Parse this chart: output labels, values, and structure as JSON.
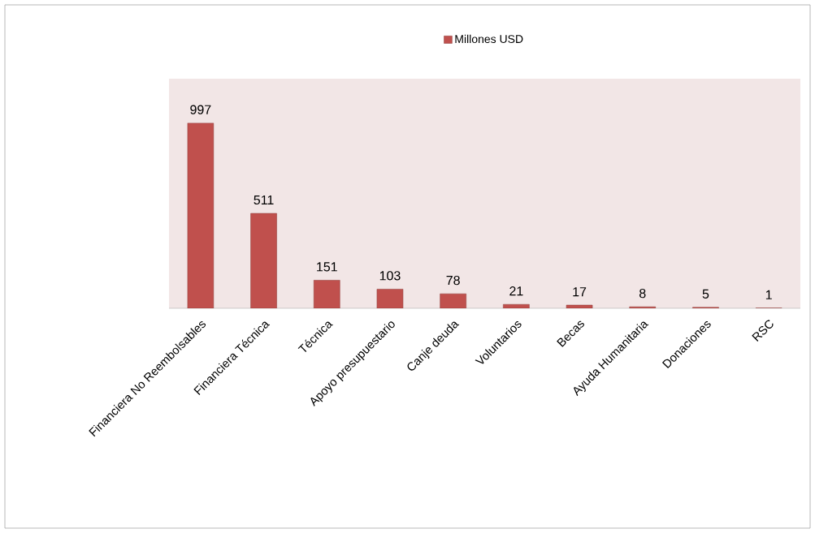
{
  "chart_data": {
    "type": "bar",
    "categories": [
      "Financiera No Reembolsables",
      "Financiera Técnica",
      "Técnica",
      "Apoyo presupuestario",
      "Canje deuda",
      "Voluntarios",
      "Becas",
      "Ayuda Humanitaria",
      "Donaciones",
      "RSC"
    ],
    "series": [
      {
        "name": "Millones USD",
        "color": "#c0504d",
        "values": [
          997,
          511,
          151,
          103,
          78,
          21,
          17,
          8,
          5,
          1
        ]
      }
    ],
    "data_labels": true,
    "legend": "top"
  }
}
